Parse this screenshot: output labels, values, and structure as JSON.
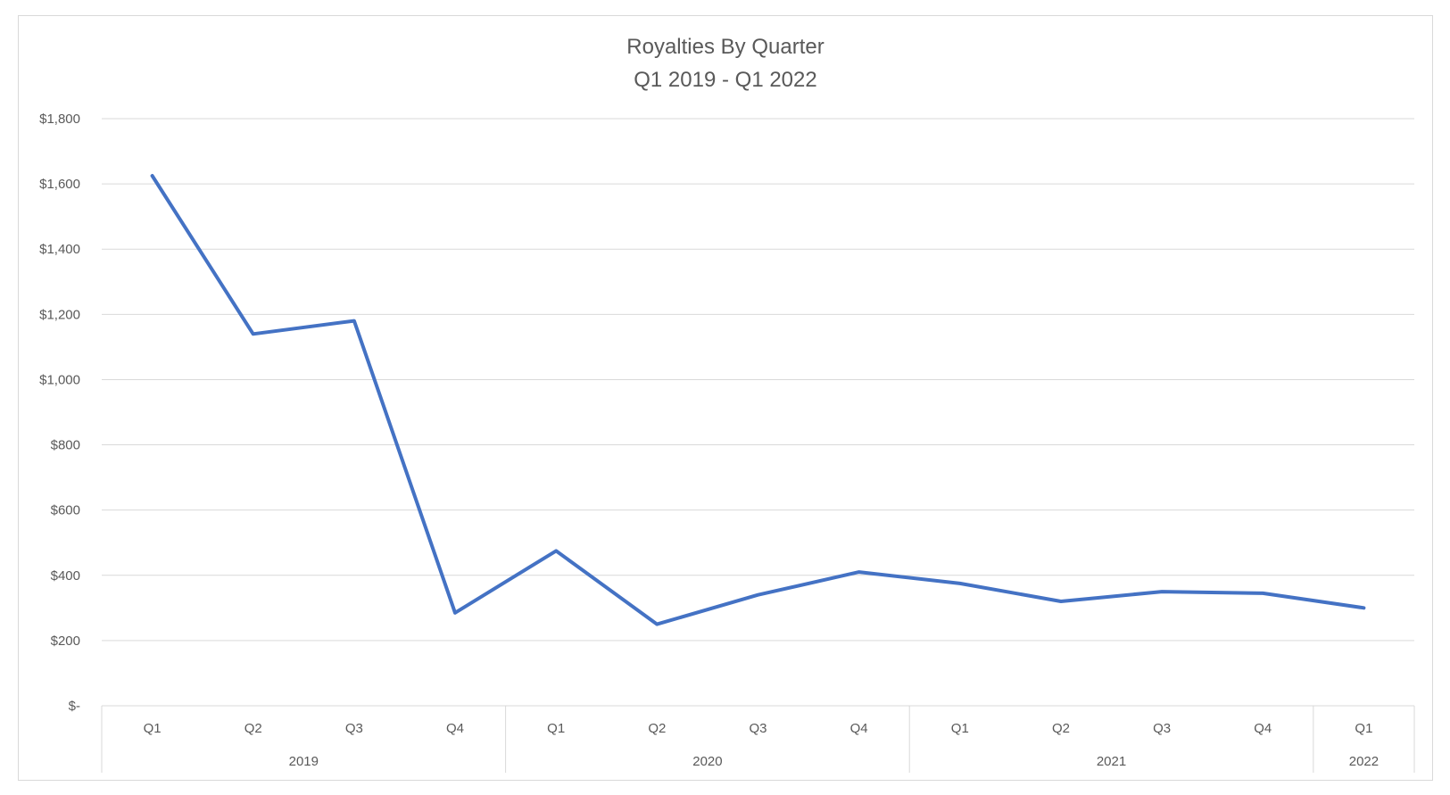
{
  "chart_data": {
    "type": "line",
    "title": "Royalties By Quarter",
    "subtitle": "Q1 2019 - Q1 2022",
    "ylim": [
      0,
      1800
    ],
    "y_ticks": [
      {
        "value": 0,
        "label": "$-"
      },
      {
        "value": 200,
        "label": "$200"
      },
      {
        "value": 400,
        "label": "$400"
      },
      {
        "value": 600,
        "label": "$600"
      },
      {
        "value": 800,
        "label": "$800"
      },
      {
        "value": 1000,
        "label": "$1,000"
      },
      {
        "value": 1200,
        "label": "$1,200"
      },
      {
        "value": 1400,
        "label": "$1,400"
      },
      {
        "value": 1600,
        "label": "$1,600"
      },
      {
        "value": 1800,
        "label": "$1,800"
      }
    ],
    "grid": true,
    "legend": "none",
    "categories": [
      "Q1",
      "Q2",
      "Q3",
      "Q4",
      "Q1",
      "Q2",
      "Q3",
      "Q4",
      "Q1",
      "Q2",
      "Q3",
      "Q4",
      "Q1"
    ],
    "groups": [
      {
        "label": "2019",
        "count": 4
      },
      {
        "label": "2020",
        "count": 4
      },
      {
        "label": "2021",
        "count": 4
      },
      {
        "label": "2022",
        "count": 1
      }
    ],
    "series": [
      {
        "values": [
          1625,
          1140,
          1180,
          285,
          475,
          250,
          340,
          410,
          375,
          320,
          350,
          345,
          300
        ],
        "color": "#4472c4"
      }
    ]
  }
}
